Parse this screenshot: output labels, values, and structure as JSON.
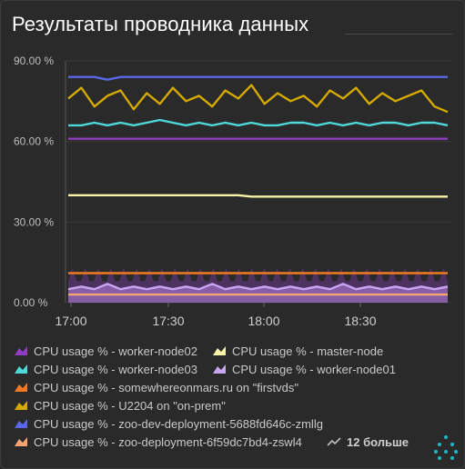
{
  "panel": {
    "title": "Результаты проводника данных",
    "more_label": "12 больше",
    "more_icon": "trend-line-icon",
    "menu_icon": "dots-grid-icon",
    "accent": "#1fb5c9"
  },
  "chart_data": {
    "type": "line",
    "ylim": [
      0,
      90
    ],
    "y_ticks": [
      "90.00 %",
      "60.00 %",
      "30.00 %",
      "0.00 %"
    ],
    "x_ticks": [
      "17:00",
      "17:30",
      "18:00",
      "18:30"
    ],
    "grid": true,
    "legend_placement": "bottom",
    "series": [
      {
        "name": "CPU usage % - worker-node02",
        "color": "#8e3fbf",
        "values": [
          61,
          61,
          61,
          61,
          61,
          61,
          61,
          61,
          61,
          61,
          61,
          61,
          61,
          61,
          61,
          61,
          61,
          61,
          61,
          61,
          61,
          61,
          61,
          61,
          61,
          61,
          61,
          61,
          61,
          61
        ],
        "style": "area-spiky-low"
      },
      {
        "name": "CPU usage % - master-node",
        "color": "#f7f3a6",
        "values": [
          40,
          40,
          40,
          40,
          40,
          40,
          40,
          40,
          40,
          40,
          40,
          40,
          40,
          40,
          39.5,
          39.5,
          39.5,
          39.5,
          39.5,
          39.5,
          39.5,
          39.5,
          39.5,
          39.5,
          39.5,
          39.5,
          39.5,
          39.5,
          39.5,
          39.5
        ]
      },
      {
        "name": "CPU usage % - worker-node03",
        "color": "#4fd8d8",
        "values": [
          66,
          66,
          67,
          66,
          67,
          66,
          67,
          68,
          67,
          66,
          67,
          66,
          67,
          66,
          67,
          66,
          66,
          67,
          67,
          66,
          67,
          66,
          67,
          66,
          67,
          67,
          66,
          67,
          67,
          66
        ]
      },
      {
        "name": "CPU usage % - worker-node01",
        "color": "#c9a6f2",
        "values": [
          5,
          6,
          5,
          7,
          5,
          6,
          5,
          6,
          5,
          6,
          5,
          7,
          5,
          6,
          5,
          6,
          5,
          6,
          5,
          6,
          5,
          7,
          5,
          6,
          5,
          6,
          5,
          6,
          5,
          6
        ]
      },
      {
        "name": "CPU usage % - somewhereonmars.ru on \"firstvds\"",
        "color": "#f07a23",
        "values": [
          11,
          11,
          11,
          11,
          11,
          11,
          11,
          11,
          11,
          11,
          11,
          11,
          11,
          11,
          11,
          11,
          11,
          11,
          11,
          11,
          11,
          11,
          11,
          11,
          11,
          11,
          11,
          11,
          11,
          11
        ]
      },
      {
        "name": "CPU usage % - U2204 on \"on-prem\"",
        "color": "#d4a900",
        "values": [
          76,
          80,
          73,
          77,
          79,
          72,
          78,
          74,
          80,
          75,
          77,
          73,
          79,
          76,
          81,
          74,
          78,
          75,
          77,
          73,
          79,
          76,
          80,
          74,
          78,
          75,
          77,
          79,
          73,
          71
        ]
      },
      {
        "name": "CPU usage % - zoo-dev-deployment-5688fd646c-zmllg",
        "color": "#5a67e8",
        "values": [
          84,
          84,
          84,
          83,
          84,
          84,
          84,
          84,
          84,
          84,
          84,
          84,
          84,
          84,
          84,
          84,
          84,
          84,
          84,
          84,
          84,
          84,
          84,
          84,
          84,
          84,
          84,
          84,
          84,
          84
        ]
      },
      {
        "name": "CPU usage % - zoo-deployment-6f59dc7bd4-zswl4",
        "color": "#f5a572",
        "values": [
          3,
          3,
          3,
          3,
          3,
          3,
          3,
          3,
          3,
          3,
          3,
          3,
          3,
          3,
          3,
          3,
          3,
          3,
          3,
          3,
          3,
          3,
          3,
          3,
          3,
          3,
          3,
          3,
          3,
          3
        ]
      }
    ]
  }
}
